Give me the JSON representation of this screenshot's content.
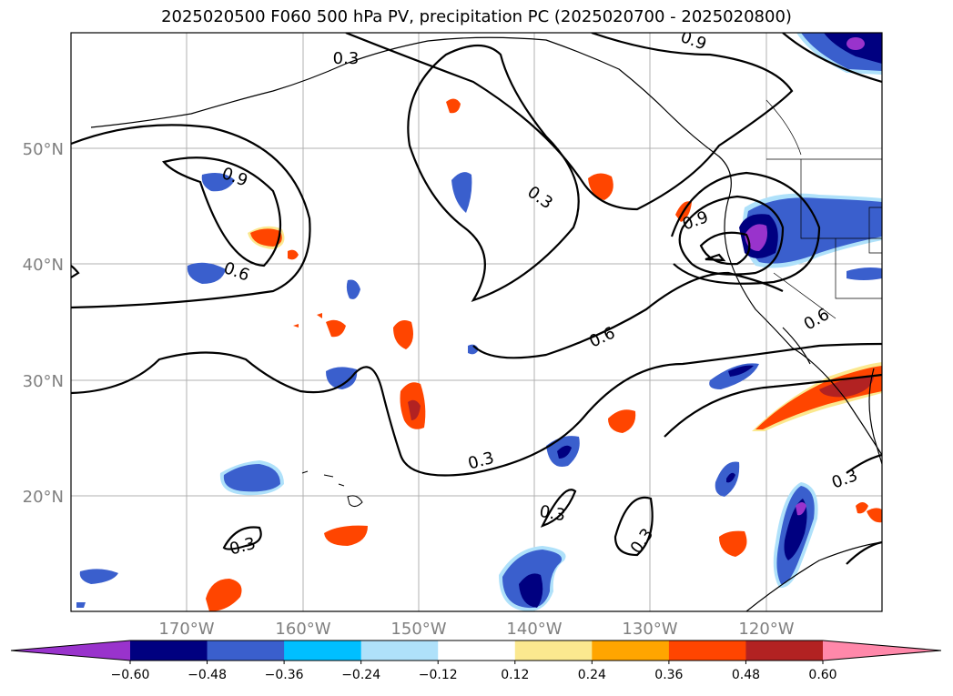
{
  "title": "2025020500 F060 500 hPa PV, precipitation PC (2025020700 - 2025020800)",
  "map": {
    "lat_labels": [
      "50°N",
      "40°N",
      "30°N",
      "20°N"
    ],
    "lon_labels": [
      "170°W",
      "160°W",
      "150°W",
      "140°W",
      "130°W",
      "120°W"
    ],
    "contour_labels": [
      "0.9",
      "0.6",
      "0.3",
      "0.6",
      "0.9",
      "0.3",
      "0.3",
      "0.3",
      "0.3",
      "0.3",
      "0.6",
      "0.9",
      "0.3"
    ]
  },
  "colorbar": {
    "colors": [
      "#9933cc",
      "#000080",
      "#3a5fcd",
      "#00bfff",
      "#afe1fa",
      "#ffffff",
      "#fbe88f",
      "#ffa500",
      "#ff4500",
      "#b22222",
      "#ff88aa"
    ],
    "tick_labels": [
      "−0.60",
      "−0.48",
      "−0.36",
      "−0.24",
      "−0.12",
      "0.12",
      "0.24",
      "0.36",
      "0.48",
      "0.60"
    ]
  }
}
